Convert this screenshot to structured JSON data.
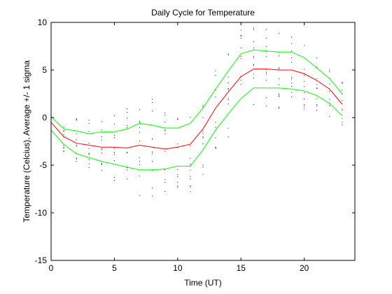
{
  "chart_data": {
    "type": "line",
    "title": "Daily Cycle for Temperature",
    "xlabel": "Time (UT)",
    "ylabel": "Temperature (Celcius), Average +/- 1 sigma",
    "xlim": [
      0,
      24
    ],
    "ylim": [
      -15,
      10
    ],
    "xticks": [
      0,
      5,
      10,
      15,
      20
    ],
    "yticks": [
      -15,
      -10,
      -5,
      0,
      5,
      10
    ],
    "grid": false,
    "colors": {
      "mean": "#ff0000",
      "sigma": "#00ff00",
      "samples": "#000000",
      "axes": "#000000",
      "background": "#ffffff"
    },
    "x": [
      0,
      1,
      2,
      3,
      4,
      5,
      6,
      7,
      8,
      9,
      10,
      11,
      12,
      13,
      14,
      15,
      16,
      17,
      18,
      19,
      20,
      21,
      22,
      23
    ],
    "series": [
      {
        "role": "mean",
        "values": [
          -0.5,
          -2.0,
          -2.7,
          -2.9,
          -3.1,
          -3.1,
          -3.2,
          -2.9,
          -3.1,
          -3.3,
          -3.1,
          -2.8,
          -1.2,
          1.0,
          2.7,
          4.3,
          5.1,
          5.1,
          5.0,
          5.0,
          4.6,
          3.9,
          3.0,
          1.4
        ]
      },
      {
        "role": "upper",
        "values": [
          0.1,
          -1.2,
          -1.4,
          -1.7,
          -1.5,
          -1.5,
          -1.2,
          -0.6,
          -0.8,
          -1.1,
          -1.1,
          -0.6,
          1.0,
          3.0,
          4.9,
          6.7,
          7.1,
          7.0,
          6.9,
          6.9,
          6.3,
          5.2,
          4.1,
          2.5
        ]
      },
      {
        "role": "lower",
        "values": [
          -1.3,
          -2.8,
          -3.8,
          -4.2,
          -4.6,
          -4.9,
          -5.2,
          -5.5,
          -5.5,
          -5.4,
          -5.1,
          -5.1,
          -3.4,
          -1.3,
          0.4,
          2.0,
          3.1,
          3.1,
          3.1,
          3.0,
          2.8,
          2.3,
          1.5,
          0.2
        ]
      }
    ]
  }
}
